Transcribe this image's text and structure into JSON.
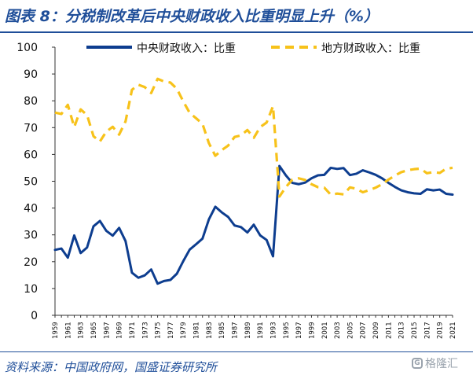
{
  "header": {
    "title": "图表 8：分税制改革后中央财政收入比重明显上升（%）"
  },
  "footer": {
    "source": "资料来源：中国政府网，国盛证券研究所",
    "watermark": "格隆汇"
  },
  "colors": {
    "title": "#1f4e99",
    "central": "#0d3d8f",
    "local": "#f7c21a"
  },
  "chart_data": {
    "type": "line",
    "title": "",
    "xlabel": "",
    "ylabel": "",
    "ylim": [
      0,
      100
    ],
    "yticks": [
      0,
      10,
      20,
      30,
      40,
      50,
      60,
      70,
      80,
      90,
      100
    ],
    "grid": false,
    "legend_position": "top",
    "x": [
      1959,
      1960,
      1961,
      1962,
      1963,
      1964,
      1965,
      1966,
      1967,
      1968,
      1969,
      1970,
      1971,
      1972,
      1973,
      1974,
      1975,
      1976,
      1977,
      1978,
      1979,
      1980,
      1981,
      1982,
      1983,
      1984,
      1985,
      1986,
      1987,
      1988,
      1989,
      1990,
      1991,
      1992,
      1993,
      1994,
      1995,
      1996,
      1997,
      1998,
      1999,
      2000,
      2001,
      2002,
      2003,
      2004,
      2005,
      2006,
      2007,
      2008,
      2009,
      2010,
      2011,
      2012,
      2013,
      2014,
      2015,
      2016,
      2017,
      2018,
      2019,
      2020,
      2021
    ],
    "xtick_labels": [
      "1959",
      "1961",
      "1963",
      "1965",
      "1967",
      "1969",
      "1971",
      "1973",
      "1975",
      "1977",
      "1979",
      "1981",
      "1983",
      "1985",
      "1987",
      "1989",
      "1991",
      "1993",
      "1995",
      "1997",
      "1999",
      "2001",
      "2003",
      "2005",
      "2007",
      "2009",
      "2011",
      "2013",
      "2015",
      "2017",
      "2019",
      "2021"
    ],
    "series": [
      {
        "name": "中央财政收入：比重",
        "style": "solid",
        "values": [
          24.4,
          24.9,
          21.5,
          29.8,
          23.2,
          25.3,
          33.2,
          35.2,
          31.5,
          29.7,
          32.6,
          27.7,
          15.9,
          14.0,
          14.9,
          17.1,
          11.8,
          12.8,
          13.2,
          15.5,
          20.2,
          24.5,
          26.5,
          28.6,
          35.8,
          40.5,
          38.4,
          36.7,
          33.5,
          32.9,
          30.9,
          33.8,
          29.8,
          28.1,
          22.0,
          55.7,
          52.2,
          49.4,
          48.9,
          49.5,
          51.1,
          52.2,
          52.4,
          55.0,
          54.6,
          54.9,
          52.3,
          52.8,
          54.1,
          53.3,
          52.4,
          51.1,
          49.4,
          47.9,
          46.6,
          45.9,
          45.5,
          45.3,
          47.0,
          46.6,
          46.9,
          45.3,
          45.0
        ]
      },
      {
        "name": "地方财政收入：比重",
        "style": "dashed",
        "values": [
          75.6,
          75.1,
          78.5,
          70.2,
          76.8,
          74.7,
          66.8,
          64.8,
          68.5,
          70.3,
          67.4,
          72.3,
          84.1,
          86.0,
          85.1,
          82.9,
          88.2,
          87.2,
          86.8,
          84.5,
          79.8,
          75.5,
          73.5,
          71.4,
          64.2,
          59.5,
          61.6,
          63.3,
          66.5,
          67.1,
          69.1,
          66.2,
          70.2,
          71.9,
          78.0,
          44.3,
          47.8,
          50.6,
          51.1,
          50.5,
          48.9,
          47.8,
          47.6,
          45.0,
          45.4,
          45.1,
          47.7,
          47.2,
          45.9,
          46.7,
          47.6,
          48.9,
          50.6,
          52.1,
          53.4,
          54.1,
          54.5,
          54.7,
          53.0,
          53.4,
          53.1,
          54.7,
          55.0
        ]
      }
    ]
  }
}
